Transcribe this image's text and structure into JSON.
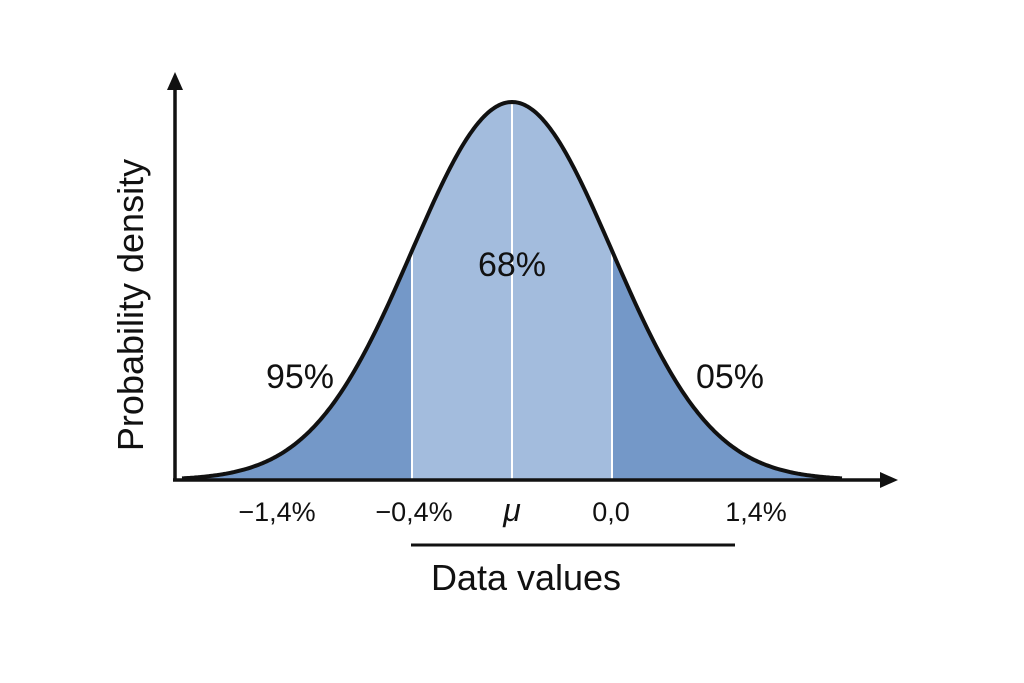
{
  "chart_data": {
    "type": "area",
    "distribution": "normal",
    "xlabel": "Data values",
    "ylabel": "Probability density",
    "x_ticks": [
      "−1,4%",
      "−0,4%",
      "μ",
      "0,0",
      "1,4%"
    ],
    "x_tick_positions_sigma": [
      -2.7,
      -1,
      0,
      1,
      2.7
    ],
    "regions": [
      {
        "label": "95%",
        "from_sigma": -3.3,
        "to_sigma": -1,
        "shade": "outer"
      },
      {
        "label": "68%",
        "from_sigma": -1,
        "to_sigma": 1,
        "shade": "inner"
      },
      {
        "label": "05%",
        "from_sigma": 1,
        "to_sigma": 3.3,
        "shade": "outer"
      }
    ],
    "region_labels": {
      "left": "95%",
      "center": "68%",
      "right": "05%"
    },
    "colors": {
      "outer": "#7498c8",
      "inner": "#a3bcdd",
      "curve": "#111111",
      "axis": "#111111",
      "divider": "#ffffff"
    },
    "grid": false,
    "legend": "none"
  }
}
